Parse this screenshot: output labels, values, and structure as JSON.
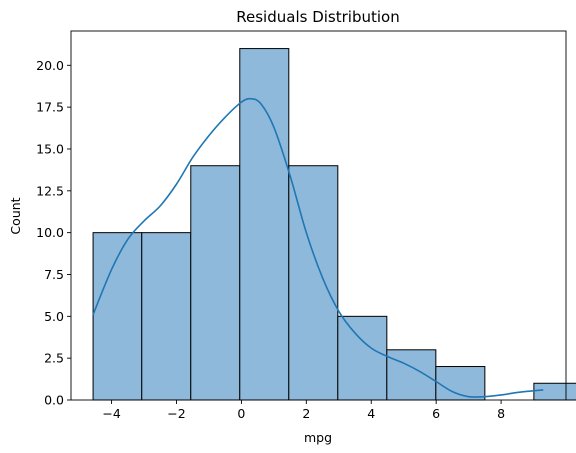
{
  "chart_data": {
    "type": "bar",
    "title": "Residuals Distribution",
    "xlabel": "mpg",
    "ylabel": "Count",
    "xlim": [
      -5.25,
      10.0
    ],
    "ylim": [
      0,
      22.05
    ],
    "bin_edges": [
      -4.57,
      -3.07,
      -1.56,
      -0.05,
      1.46,
      2.97,
      4.48,
      5.99,
      7.5,
      9.01,
      10.52
    ],
    "values": [
      10,
      10,
      14,
      21,
      14,
      5,
      3,
      2,
      0,
      1
    ],
    "x_ticks": [
      -4,
      -2,
      0,
      2,
      4,
      6,
      8
    ],
    "x_tick_labels": [
      "−4",
      "−2",
      "0",
      "2",
      "4",
      "6",
      "8"
    ],
    "y_ticks": [
      0,
      2.5,
      5,
      7.5,
      10,
      12.5,
      15,
      17.5,
      20
    ],
    "y_tick_labels": [
      "0.0",
      "2.5",
      "5.0",
      "7.5",
      "10.0",
      "12.5",
      "15.0",
      "17.5",
      "20.0"
    ],
    "kde": {
      "x": [
        -4.57,
        -4.0,
        -3.5,
        -3.0,
        -2.5,
        -2.0,
        -1.5,
        -1.0,
        -0.5,
        0.0,
        0.3,
        0.6,
        1.0,
        1.5,
        2.0,
        2.5,
        3.0,
        3.5,
        4.0,
        4.5,
        5.0,
        5.5,
        6.0,
        6.5,
        7.0,
        7.5,
        8.0,
        8.5,
        9.0,
        9.3
      ],
      "y": [
        5.1,
        7.8,
        9.6,
        10.7,
        11.6,
        12.9,
        14.5,
        15.8,
        16.9,
        17.8,
        18.0,
        17.7,
        16.3,
        13.4,
        10.0,
        7.3,
        5.3,
        4.0,
        3.1,
        2.6,
        2.2,
        1.7,
        1.1,
        0.5,
        0.2,
        0.2,
        0.3,
        0.45,
        0.55,
        0.6
      ]
    },
    "grid": false,
    "colors": {
      "bar_fill": "#8eb9db",
      "bar_edge": "#000000",
      "kde_line": "#1f77b4"
    }
  }
}
